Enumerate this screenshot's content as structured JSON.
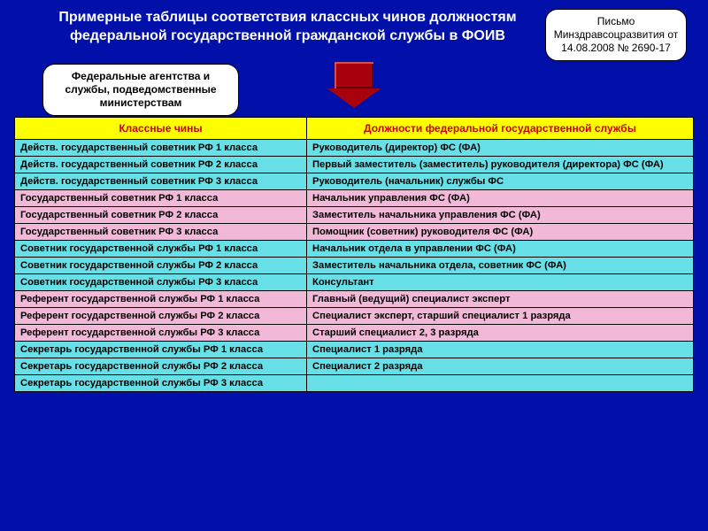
{
  "title": "Примерные таблицы соответствия классных чинов должностям федеральной государственной гражданской службы в ФОИВ",
  "letter_callout": "Письмо Минздравсоцразвития от 14.08.2008 № 2690-17",
  "agencies_callout": "Федеральные агентства и службы, подведомственные министерствам",
  "table": {
    "header_left": "Классные чины",
    "header_right": "Должности федеральной государственной службы",
    "row_colors": {
      "cyan": "#66e0e6",
      "pink": "#f2b8d8"
    },
    "header_bg": "#ffff00",
    "header_text_color": "#cc0000",
    "rows": [
      {
        "c": "cyan",
        "left": "Действ. государственный советник РФ 1 класса",
        "right": "Руководитель (директор) ФС (ФА)"
      },
      {
        "c": "cyan",
        "left": "Действ. государственный советник РФ 2 класса",
        "right": "Первый заместитель (заместитель) руководителя (директора) ФС (ФА)"
      },
      {
        "c": "cyan",
        "left": "Действ. государственный советник РФ 3 класса",
        "right": "Руководитель (начальник) службы ФС"
      },
      {
        "c": "pink",
        "left": "Государственный советник РФ 1 класса",
        "right": "Начальник управления ФС (ФА)"
      },
      {
        "c": "pink",
        "left": "Государственный советник РФ 2 класса",
        "right": "Заместитель начальника управления ФС (ФА)"
      },
      {
        "c": "pink",
        "left": "Государственный советник РФ 3 класса",
        "right": "Помощник (советник) руководителя ФС (ФА)"
      },
      {
        "c": "cyan",
        "left": "Советник государственной службы РФ 1 класса",
        "right": "Начальник отдела в управлении ФС (ФА)"
      },
      {
        "c": "cyan",
        "left": "Советник государственной службы РФ 2 класса",
        "right": "Заместитель начальника отдела, советник ФС (ФА)"
      },
      {
        "c": "cyan",
        "left": "Советник государственной службы РФ 3 класса",
        "right": "Консультант"
      },
      {
        "c": "pink",
        "left": "Референт государственной службы РФ 1 класса",
        "right": "Главный (ведущий) специалист эксперт"
      },
      {
        "c": "pink",
        "left": "Референт государственной службы РФ 2 класса",
        "right": "Специалист эксперт, старший специалист 1 разряда"
      },
      {
        "c": "pink",
        "left": "Референт государственной службы РФ 3 класса",
        "right": "Старший специалист 2, 3 разряда"
      },
      {
        "c": "cyan",
        "left": "Секретарь государственной службы РФ 1 класса",
        "right": "Специалист 1 разряда"
      },
      {
        "c": "cyan",
        "left": "Секретарь государственной службы РФ 2 класса",
        "right": "Специалист 2 разряда"
      },
      {
        "c": "cyan",
        "left": "Секретарь государственной службы РФ 3 класса",
        "right": ""
      }
    ]
  },
  "page_background": "#0010a8"
}
